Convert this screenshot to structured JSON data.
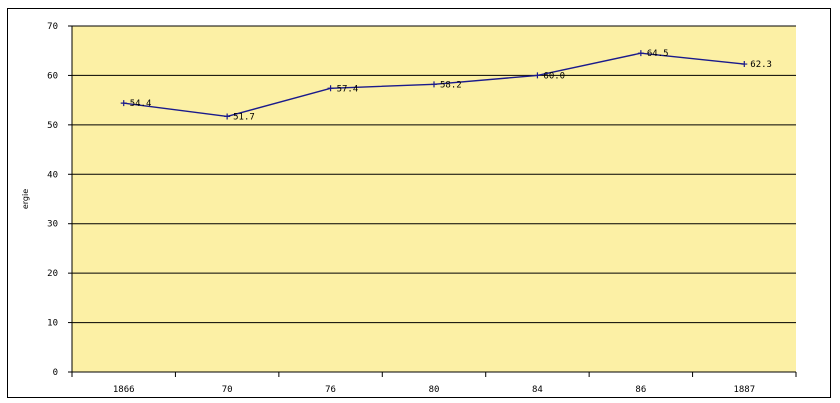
{
  "chart_data": {
    "type": "line",
    "title": "",
    "xlabel": "",
    "ylabel": "ergie",
    "categories": [
      "1866",
      "70",
      "76",
      "80",
      "84",
      "86",
      "1887"
    ],
    "series": [
      {
        "values": [
          54.4,
          51.7,
          57.4,
          58.2,
          60.0,
          64.5,
          62.3
        ],
        "labels": [
          "54.4",
          "51.7",
          "57.4",
          "58.2",
          "60.0",
          "64.5",
          "62.3"
        ]
      }
    ],
    "ylim": [
      0,
      70
    ],
    "yticks": [
      "0",
      "10",
      "20",
      "30",
      "40",
      "50",
      "60",
      "70"
    ],
    "grid": true,
    "colors": {
      "plot_bg": "#fcf0a5",
      "line": "#1a1a8c",
      "grid": "#000000"
    }
  }
}
